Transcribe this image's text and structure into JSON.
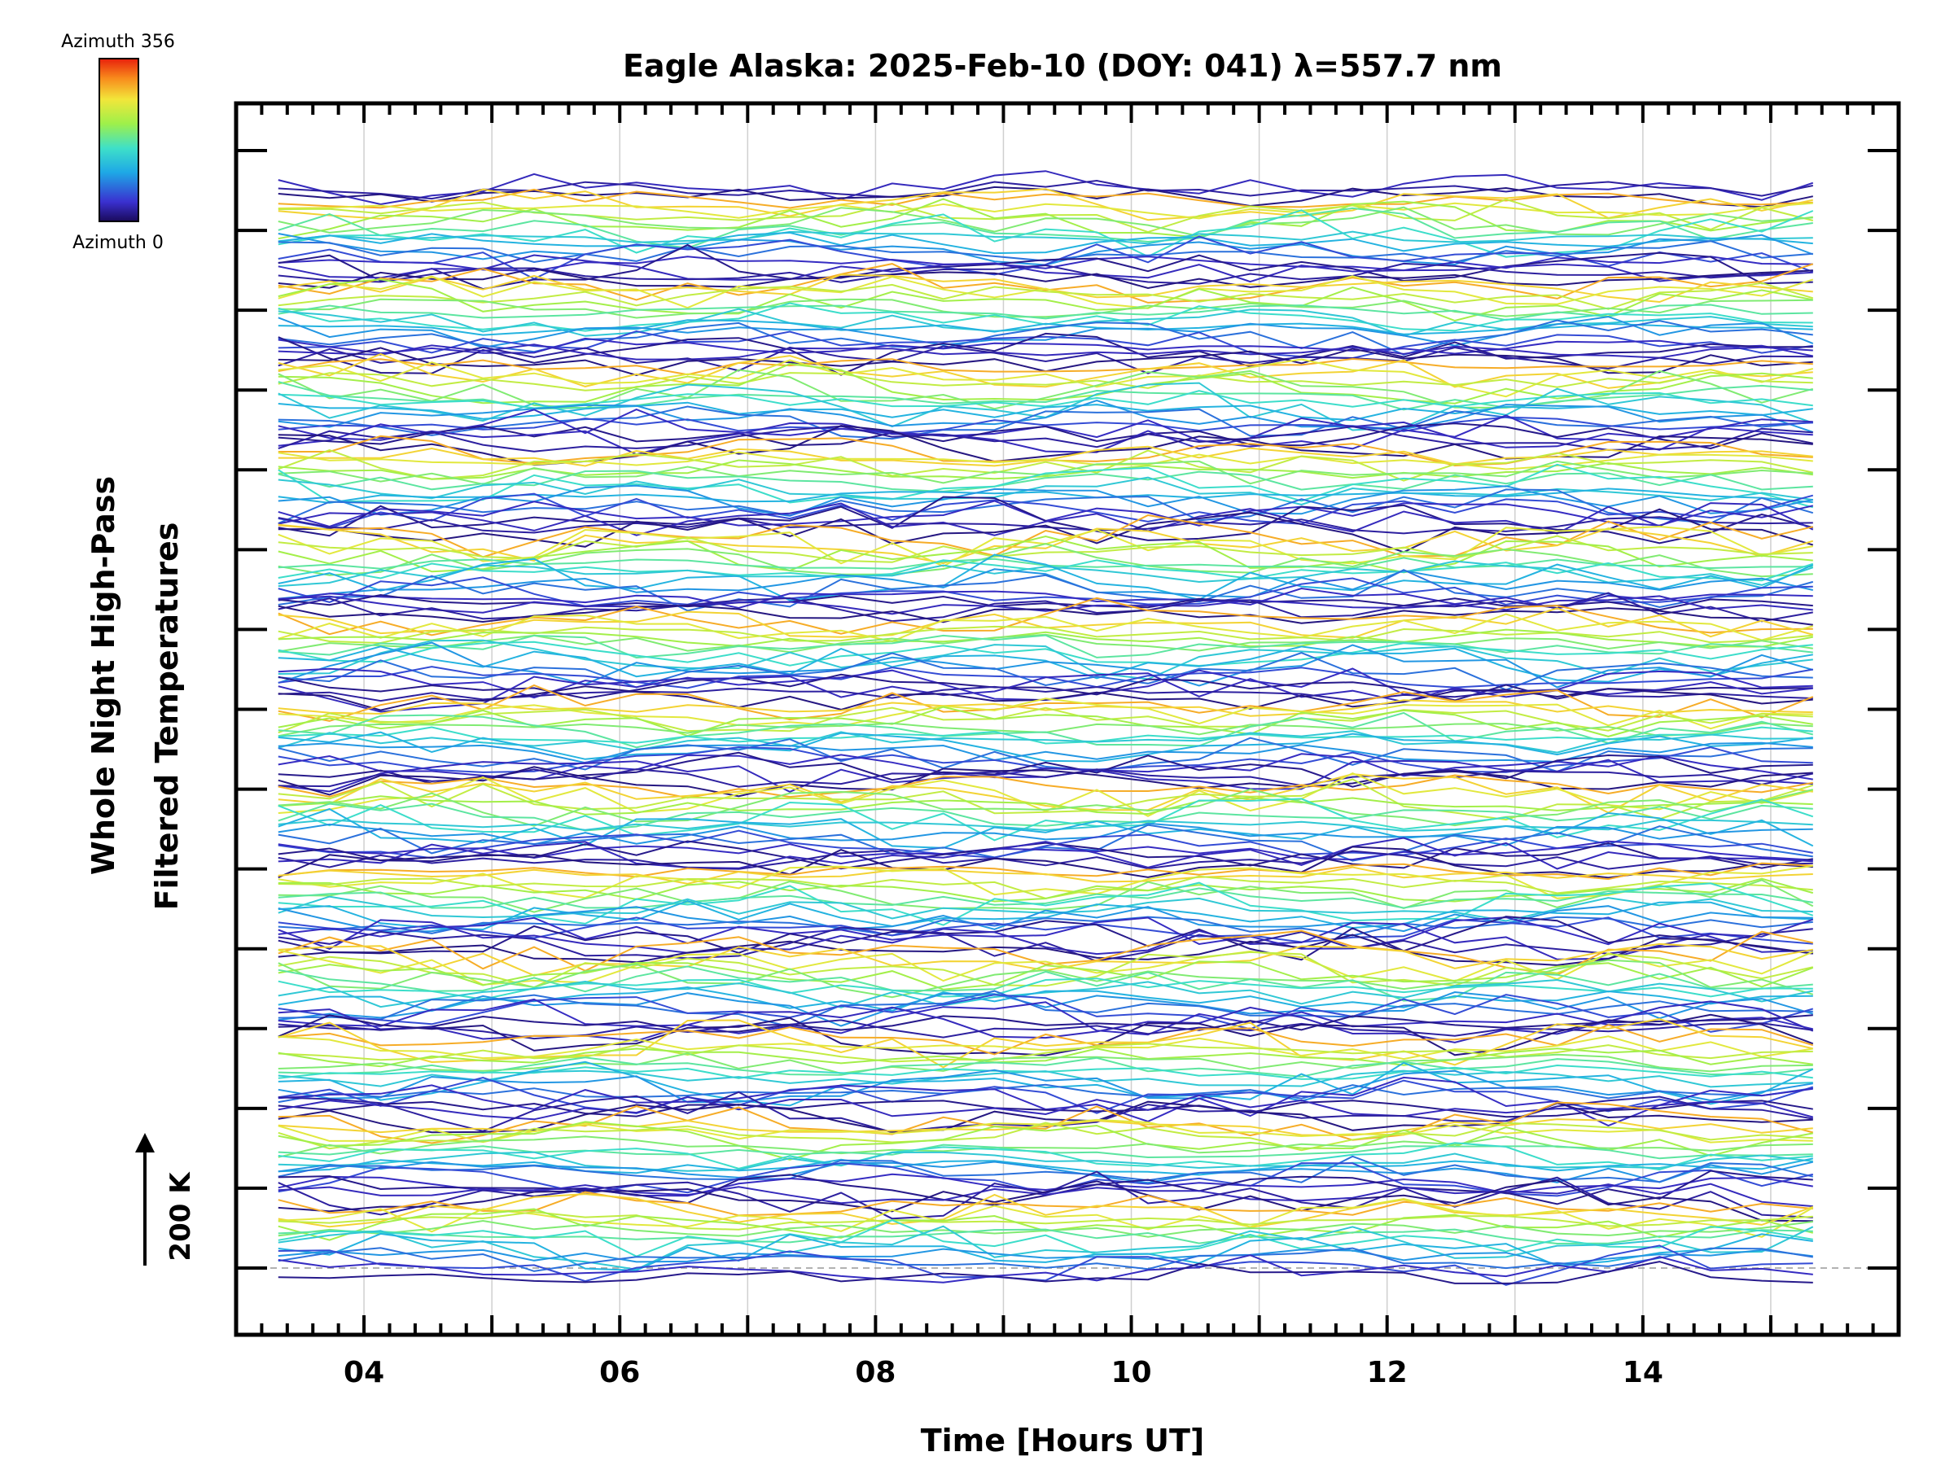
{
  "chart_data": {
    "type": "line",
    "title": "Eagle Alaska: 2025-Feb-10 (DOY: 041) λ=557.7 nm",
    "xlabel": "Time [Hours UT]",
    "ylabel_line1": "Whole Night High-Pass",
    "ylabel_line2": "Filtered Temperatures",
    "xlim": [
      3.0,
      16.0
    ],
    "x_ticks": [
      4,
      6,
      8,
      10,
      12,
      14
    ],
    "x_tick_labels": [
      "04",
      "06",
      "08",
      "10",
      "12",
      "14"
    ],
    "scale_bar_label": "200 K",
    "colorbar": {
      "top_label": "Azimuth 356",
      "bottom_label": "Azimuth 0",
      "colormap": "rainbow"
    },
    "grid": "vertical",
    "legend": "colorbar top-left",
    "baseline_dashed": true,
    "time_start": 3.33,
    "time_step": 0.4,
    "n_points": 31,
    "bands": 13,
    "lines_per_band": 18
  },
  "colors": {
    "background": "#ffffff",
    "axes": "#000000",
    "grid": "#cccccc"
  }
}
